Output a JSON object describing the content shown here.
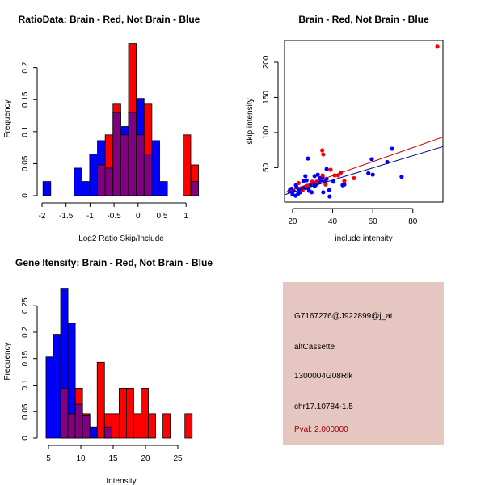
{
  "colors": {
    "red": "#ff0000",
    "blue": "#0000ff",
    "overlap": "#800080",
    "red_line": "#cc0000",
    "blue_line": "#00008b",
    "panel": "#e6c6c0",
    "pval": "#a00000"
  },
  "chart_data": [
    {
      "type": "bar",
      "subtype": "overlaid-histogram",
      "title": "RatioData: Brain - Red, Not Brain - Blue",
      "xlabel": "Log2 Ratio Skip/Include",
      "ylabel": "Frequency",
      "xlim": [
        -2.0,
        1.3
      ],
      "ylim": [
        0,
        0.24
      ],
      "xticks": [
        -2.0,
        -1.5,
        -1.0,
        -0.5,
        0.0,
        0.5,
        1.0
      ],
      "xtick_labels": [
        "-2.0",
        "-1.5",
        "-1.0",
        "-0.5",
        "0.0",
        "0.5",
        "1.0"
      ],
      "yticks": [
        0,
        0.05,
        0.1,
        0.15,
        0.2
      ],
      "ytick_labels": [
        "0.00",
        "0.05",
        "0.10",
        "0.15",
        "0.20"
      ],
      "bin_start": -1.98,
      "bin_width": 0.162,
      "series": [
        {
          "name": "Not Brain",
          "color": "blue",
          "values": [
            0.022,
            0,
            0,
            0,
            0.043,
            0.022,
            0.065,
            0.086,
            0.043,
            0.13,
            0.108,
            0.13,
            0.152,
            0.065,
            0.086,
            0.022,
            0,
            0,
            0,
            0.022
          ]
        },
        {
          "name": "Brain",
          "color": "red",
          "values": [
            0,
            0,
            0,
            0,
            0,
            0,
            0,
            0.048,
            0.095,
            0.143,
            0.095,
            0.238,
            0.095,
            0.143,
            0,
            0,
            0,
            0,
            0.095,
            0.048
          ]
        }
      ]
    },
    {
      "type": "scatter",
      "title": "Brain - Red, Not Brain - Blue",
      "xlabel": "include intensity",
      "ylabel": "skip intensity",
      "xlim": [
        16,
        95
      ],
      "ylim": [
        1,
        231
      ],
      "xticks": [
        20,
        40,
        60,
        80
      ],
      "xtick_labels": [
        "20",
        "40",
        "60",
        "80"
      ],
      "yticks": [
        50,
        100,
        150,
        200
      ],
      "ytick_labels": [
        "50",
        "100",
        "150",
        "200"
      ],
      "series": [
        {
          "name": "Not Brain",
          "color": "blue",
          "points": [
            [
              27.7,
              63
            ],
            [
              59.5,
              62
            ],
            [
              69.6,
              77
            ],
            [
              67.2,
              58
            ],
            [
              57.8,
              42
            ],
            [
              60,
              40
            ],
            [
              74.4,
              37
            ],
            [
              37,
              48
            ],
            [
              44,
              43
            ],
            [
              45,
              25
            ],
            [
              45.8,
              26
            ],
            [
              38.3,
              18
            ],
            [
              38.5,
              9
            ],
            [
              35.3,
              15
            ],
            [
              40.4,
              30
            ],
            [
              31,
              38
            ],
            [
              32.6,
              40
            ],
            [
              26.4,
              38
            ],
            [
              25.4,
              31
            ],
            [
              27,
              32
            ],
            [
              35,
              37
            ],
            [
              37,
              34
            ],
            [
              33.6,
              32
            ],
            [
              31.4,
              25
            ],
            [
              29.5,
              15
            ],
            [
              28.3,
              17
            ],
            [
              27.7,
              21
            ],
            [
              25.8,
              21
            ],
            [
              23.8,
              15
            ],
            [
              22.8,
              13
            ],
            [
              21.5,
              10
            ],
            [
              20,
              12
            ],
            [
              18.8,
              19
            ],
            [
              18.4,
              16
            ],
            [
              21.7,
              25
            ],
            [
              23,
              19
            ],
            [
              32,
              27
            ],
            [
              30.6,
              28
            ],
            [
              34.5,
              32
            ],
            [
              33.6,
              35
            ],
            [
              20.5,
              17
            ],
            [
              22,
              22
            ],
            [
              24.5,
              20
            ],
            [
              29,
              26
            ],
            [
              31,
              24
            ],
            [
              36,
              30
            ],
            [
              33,
              29
            ],
            [
              19.5,
              20
            ]
          ],
          "fit": [
            [
              16,
              11.5
            ],
            [
              95,
              80
            ]
          ]
        },
        {
          "name": "Brain",
          "color": "red",
          "points": [
            [
              92.2,
              222
            ],
            [
              34.8,
              74.6
            ],
            [
              35.3,
              68.8
            ],
            [
              39,
              47
            ],
            [
              41,
              39
            ],
            [
              42.7,
              39
            ],
            [
              45.8,
              31
            ],
            [
              50.6,
              35
            ],
            [
              36.5,
              26
            ],
            [
              35,
              39
            ],
            [
              29.8,
              30
            ],
            [
              23,
              28
            ],
            [
              25,
              18
            ],
            [
              44,
              43
            ],
            [
              32,
              30
            ],
            [
              27,
              24
            ]
          ],
          "fit": [
            [
              16,
              14.6
            ],
            [
              95,
              93.5
            ]
          ]
        }
      ]
    },
    {
      "type": "bar",
      "subtype": "overlaid-histogram",
      "title": "Gene Itensity: Brain - Red, Not Brain - Blue",
      "xlabel": "Intensity",
      "ylabel": "Frequency",
      "xlim": [
        4,
        28.5
      ],
      "ylim": [
        0,
        0.29
      ],
      "xticks": [
        5,
        10,
        15,
        20,
        25
      ],
      "xtick_labels": [
        "5",
        "10",
        "15",
        "20",
        "25"
      ],
      "yticks": [
        0,
        0.05,
        0.1,
        0.15,
        0.2,
        0.25
      ],
      "ytick_labels": [
        "0.00",
        "0.05",
        "0.10",
        "0.15",
        "0.20",
        "0.25"
      ],
      "bin_start": 4.62,
      "bin_width": 1.13,
      "series": [
        {
          "name": "Not Brain",
          "color": "blue",
          "values": [
            0.153,
            0.196,
            0.283,
            0.217,
            0.064,
            0.042,
            0.021,
            0,
            0.021,
            0,
            0,
            0,
            0,
            0,
            0,
            0,
            0,
            0,
            0,
            0
          ]
        },
        {
          "name": "Brain",
          "color": "red",
          "values": [
            0,
            0,
            0.094,
            0.046,
            0.094,
            0.046,
            0,
            0.143,
            0.046,
            0.046,
            0.094,
            0.094,
            0.046,
            0.094,
            0.046,
            0,
            0.046,
            0,
            0,
            0.046
          ]
        }
      ]
    }
  ],
  "info_panel": {
    "probe_id": "G7167276@J922899@j_at",
    "event_type": "altCassette",
    "gene": "1300004G08Rik",
    "location": "chr17.10784-1.5",
    "pval": "Pval: 2.000000"
  }
}
